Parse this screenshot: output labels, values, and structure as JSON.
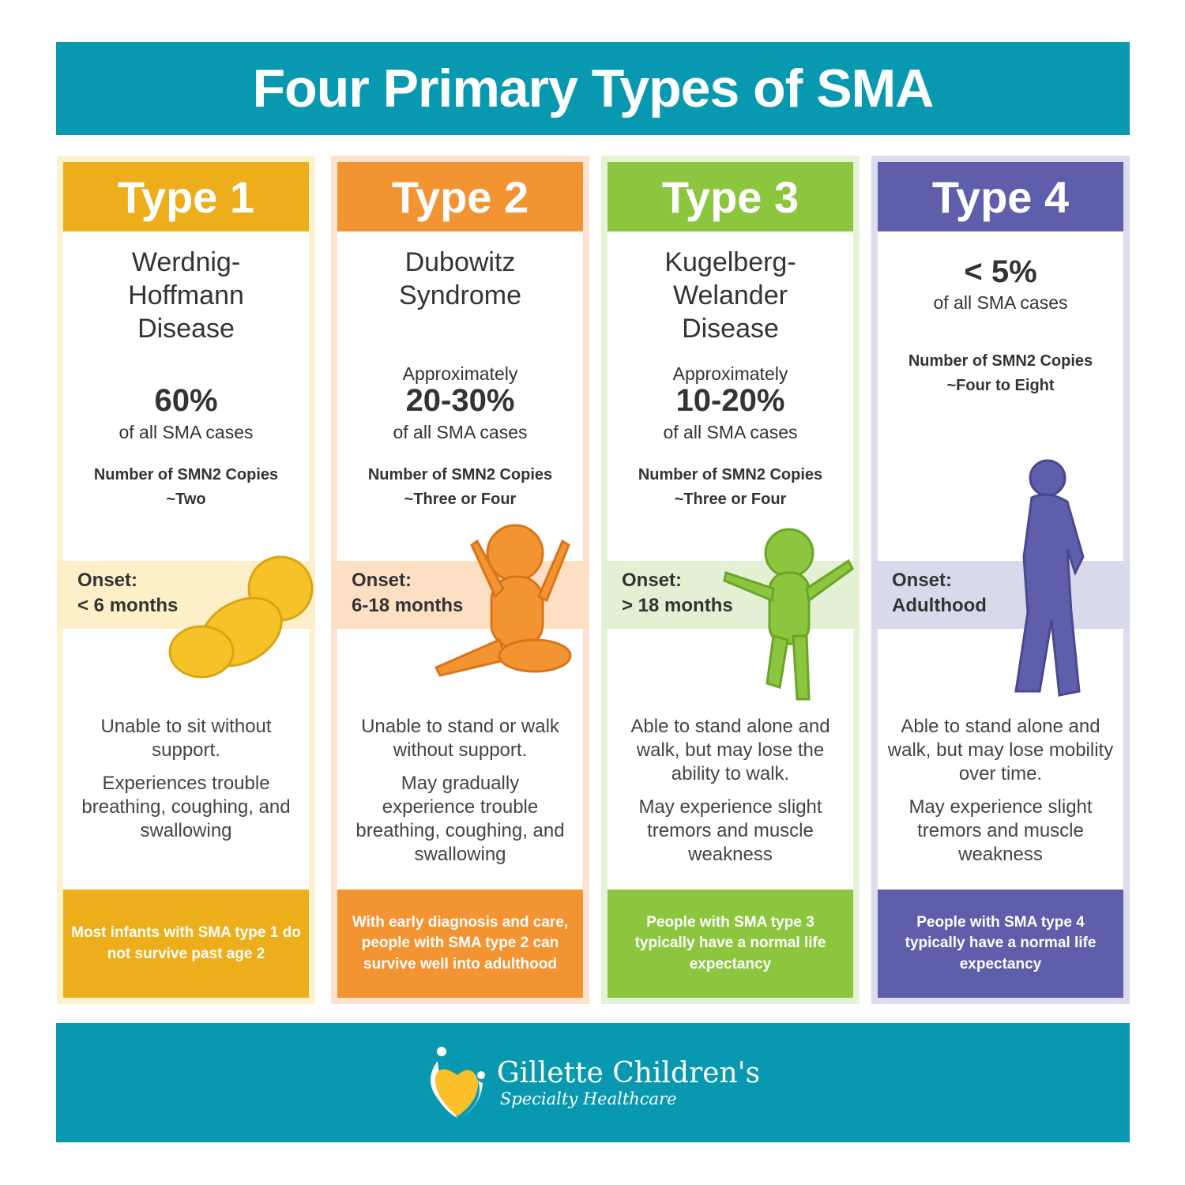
{
  "title": "Four Primary Types of SMA",
  "colors": {
    "teal": "#0899b0",
    "type1": "#edae1b",
    "type2": "#f39433",
    "type3": "#8cc63f",
    "type4": "#5f5eab"
  },
  "types": [
    {
      "label": "Type 1",
      "name": [
        "Werdnig-",
        "Hoffmann",
        "Disease"
      ],
      "approx": "",
      "percent": "60%",
      "cases": "of all SMA cases",
      "smn2_label": "Number of SMN2 Copies",
      "smn2_value": "~Two",
      "onset_label": "Onset:",
      "onset_value": "< 6 months",
      "desc1": "Unable to sit without support.",
      "desc2": "Experiences trouble breathing, coughing, and swallowing",
      "footer": "Most infants with SMA type 1 do not survive past age 2",
      "figure": "infant-lying-icon"
    },
    {
      "label": "Type 2",
      "name": [
        "Dubowitz",
        "Syndrome"
      ],
      "approx": "Approximately",
      "percent": "20-30%",
      "cases": "of all SMA cases",
      "smn2_label": "Number of SMN2 Copies",
      "smn2_value": "~Three or Four",
      "onset_label": "Onset:",
      "onset_value": "6-18 months",
      "desc1": "Unable to stand or walk without support.",
      "desc2": "May gradually experience trouble breathing, coughing, and swallowing",
      "footer": "With early diagnosis and care, people with SMA type 2 can survive well into adulthood",
      "figure": "baby-sitting-icon"
    },
    {
      "label": "Type 3",
      "name": [
        "Kugelberg-",
        "Welander",
        "Disease"
      ],
      "approx": "Approximately",
      "percent": "10-20%",
      "cases": "of all SMA cases",
      "smn2_label": "Number of SMN2 Copies",
      "smn2_value": "~Three or Four",
      "onset_label": "Onset:",
      "onset_value": "> 18 months",
      "desc1": "Able to stand alone and walk, but may lose the ability to walk.",
      "desc2": "May experience slight tremors and muscle weakness",
      "footer": "People with SMA type 3 typically have a normal life expectancy",
      "figure": "toddler-walking-icon"
    },
    {
      "label": "Type 4",
      "percent": "< 5%",
      "cases": "of all SMA cases",
      "smn2_label": "Number of SMN2 Copies",
      "smn2_value": "~Four to Eight",
      "onset_label": "Onset:",
      "onset_value": "Adulthood",
      "desc1": "Able to stand alone and walk, but may lose mobility over time.",
      "desc2": "May experience slight tremors and muscle weakness",
      "footer": "People with SMA type 4 typically have a normal life expectancy",
      "figure": "adult-standing-icon"
    }
  ],
  "logo": {
    "name": "Gillette Children's",
    "tagline": "Specialty Healthcare"
  }
}
